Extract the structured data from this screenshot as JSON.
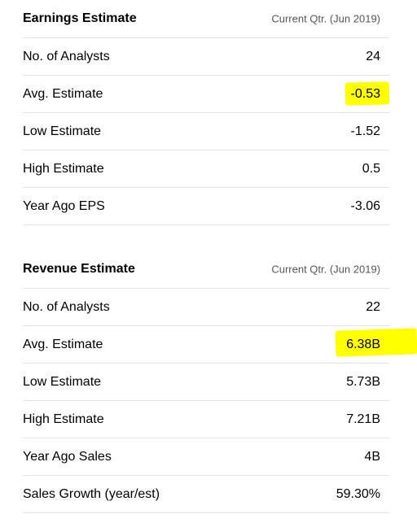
{
  "earnings": {
    "title": "Earnings Estimate",
    "period": "Current Qtr. (Jun 2019)",
    "rows": [
      {
        "label": "No. of Analysts",
        "value": "24"
      },
      {
        "label": "Avg. Estimate",
        "value": "-0.53"
      },
      {
        "label": "Low Estimate",
        "value": "-1.52"
      },
      {
        "label": "High Estimate",
        "value": "0.5"
      },
      {
        "label": "Year Ago EPS",
        "value": "-3.06"
      }
    ]
  },
  "revenue": {
    "title": "Revenue Estimate",
    "period": "Current Qtr. (Jun 2019)",
    "rows": [
      {
        "label": "No. of Analysts",
        "value": "22"
      },
      {
        "label": "Avg. Estimate",
        "value": "6.38B"
      },
      {
        "label": "Low Estimate",
        "value": "5.73B"
      },
      {
        "label": "High Estimate",
        "value": "7.21B"
      },
      {
        "label": "Year Ago Sales",
        "value": "4B"
      },
      {
        "label": "Sales Growth (year/est)",
        "value": "59.30%"
      }
    ]
  },
  "colors": {
    "highlight": "#ffff00",
    "divider": "#e3e3e3",
    "muted_text": "#555555"
  }
}
